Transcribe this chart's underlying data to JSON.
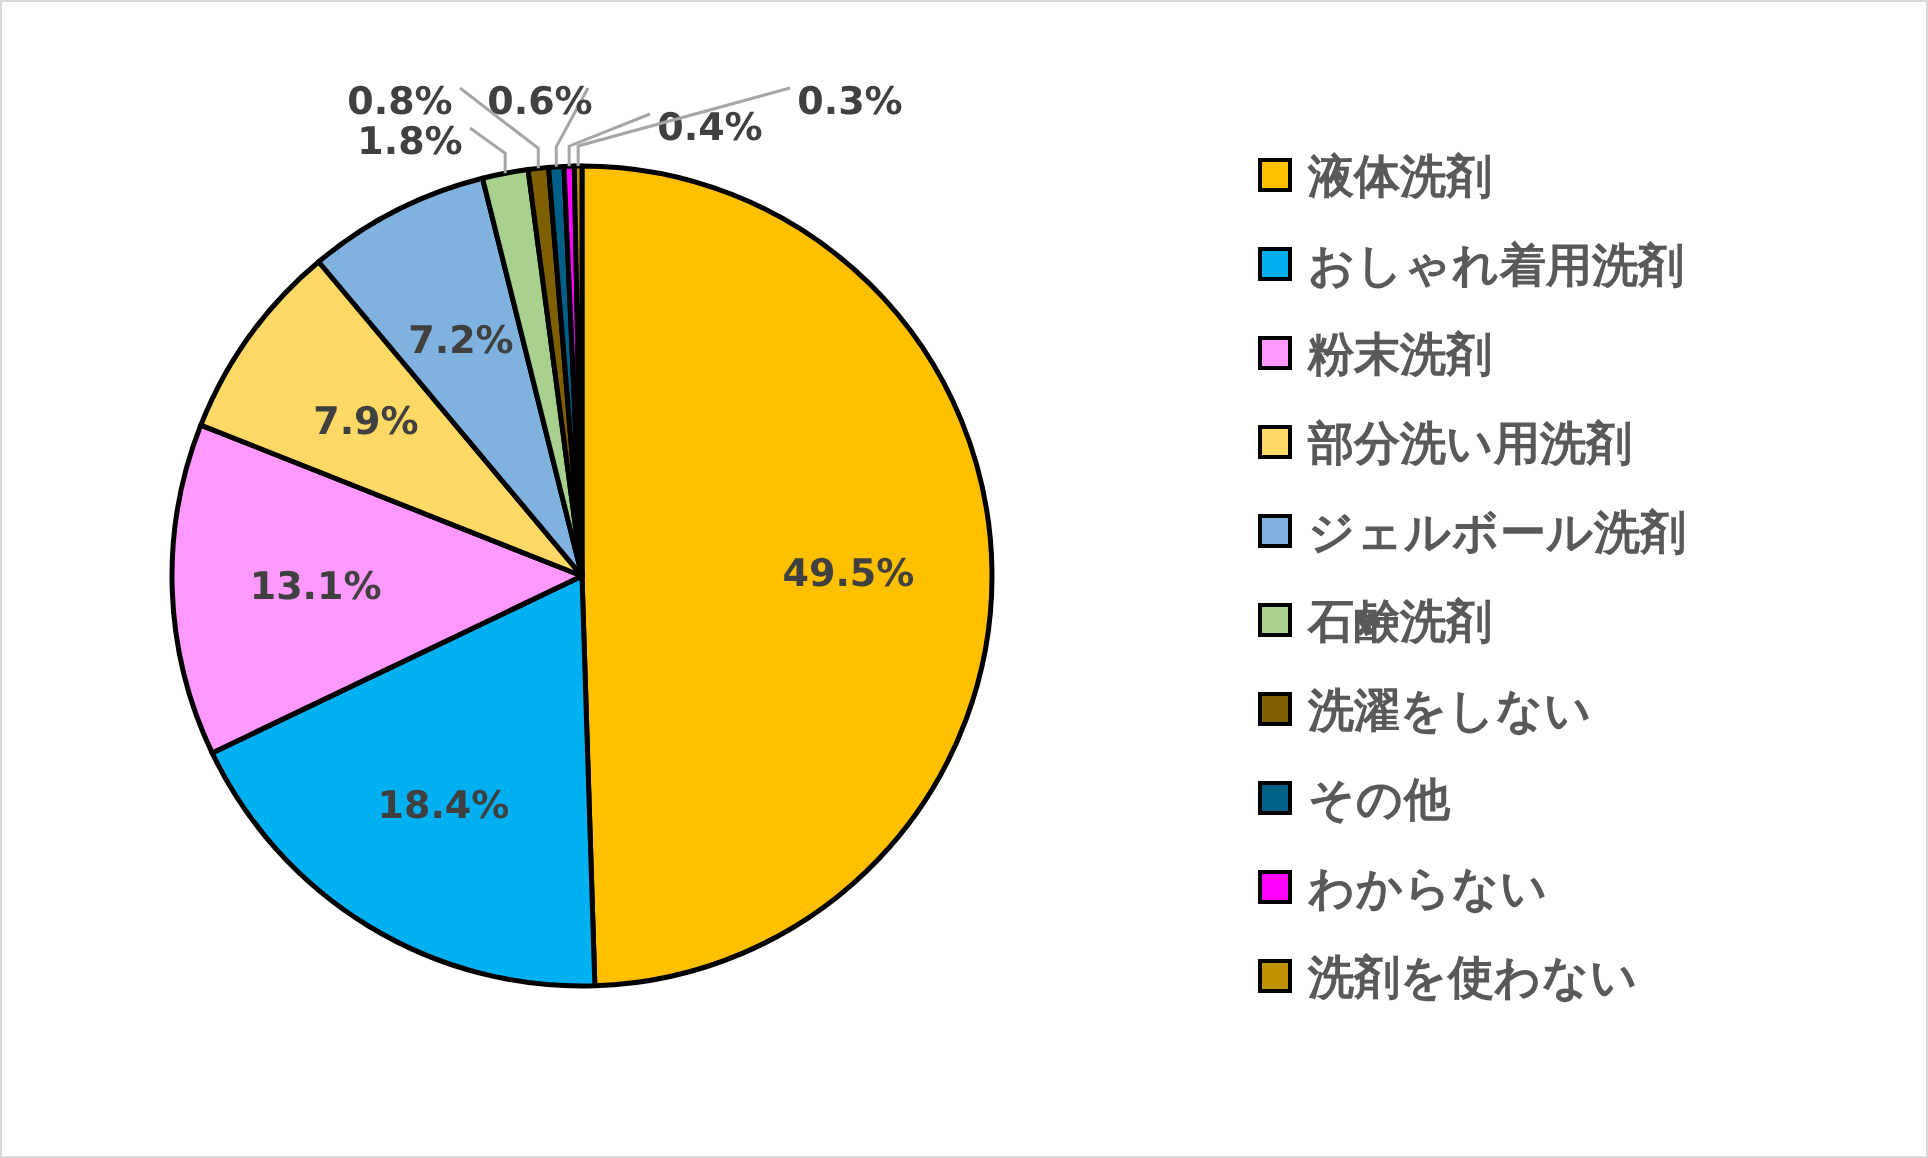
{
  "chart_data": {
    "type": "pie",
    "categories": [
      "液体洗剤",
      "おしゃれ着用洗剤",
      "粉末洗剤",
      "部分洗い用洗剤",
      "ジェルボール洗剤",
      "石鹸洗剤",
      "洗濯をしない",
      "その他",
      "わからない",
      "洗剤を使わない"
    ],
    "values": [
      49.5,
      18.4,
      13.1,
      7.9,
      7.2,
      1.8,
      0.8,
      0.6,
      0.4,
      0.3
    ],
    "colors": [
      "#ffc000",
      "#00b0f0",
      "#ff99ff",
      "#ffd966",
      "#7fb2de",
      "#a9d18e",
      "#7f6000",
      "#005f86",
      "#ff00ff",
      "#bf9000"
    ],
    "value_labels": [
      "49.5%",
      "18.4%",
      "13.1%",
      "7.9%",
      "7.2%",
      "1.8%",
      "0.8%",
      "0.6%",
      "0.4%",
      "0.3%"
    ],
    "legend": "right"
  }
}
